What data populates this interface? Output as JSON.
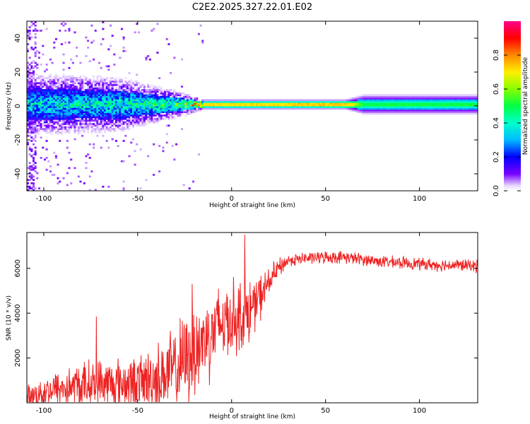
{
  "title": "C2E2.2025.327.22.01.E02",
  "chart_data": [
    {
      "type": "heatmap",
      "title": "C2E2.2025.327.22.01.E02",
      "xlabel": "Height of straight line (km)",
      "ylabel": "Frequency (Hz)",
      "xlim": [
        -109,
        131
      ],
      "ylim": [
        -50,
        50
      ],
      "x_ticks": [
        -100,
        -50,
        0,
        50,
        100
      ],
      "y_ticks": [
        -40,
        -20,
        0,
        20,
        40
      ],
      "x_tick_labels": [
        "-100",
        "-50",
        "0",
        "50",
        "100"
      ],
      "y_tick_labels": [
        "-40",
        "-20",
        "0",
        "20",
        "40"
      ],
      "colorbar": {
        "label": "Normalized spectral amplitude",
        "range": [
          0,
          1
        ],
        "ticks": [
          0.0,
          0.2,
          0.4,
          0.6,
          0.8
        ],
        "tick_labels": [
          "0.0",
          "0.2",
          "0.4",
          "0.6",
          "0.8"
        ],
        "colormap": "rainbow (violet-blue-cyan-green-yellow-orange-red-magenta)"
      },
      "ridge": {
        "center_frequency_hz": 1,
        "description_points": [
          {
            "height_km": -109,
            "half_width_hz": 9,
            "peak_amplitude": 0.35
          },
          {
            "height_km": -60,
            "half_width_hz": 8,
            "peak_amplitude": 0.4
          },
          {
            "height_km": -30,
            "half_width_hz": 4,
            "peak_amplitude": 0.5
          },
          {
            "height_km": -15,
            "half_width_hz": 1.5,
            "peak_amplitude": 0.85
          },
          {
            "height_km": 60,
            "half_width_hz": 1.5,
            "peak_amplitude": 0.9
          },
          {
            "height_km": 70,
            "half_width_hz": 3,
            "peak_amplitude": 0.55
          },
          {
            "height_km": 131,
            "half_width_hz": 3,
            "peak_amplitude": 0.55
          }
        ]
      }
    },
    {
      "type": "line",
      "xlabel": "Height of straight line (km)",
      "ylabel": "SNR (10 * v/v)",
      "xlim": [
        -109,
        131
      ],
      "ylim": [
        0,
        7600
      ],
      "x_ticks": [
        -100,
        -50,
        0,
        50,
        100
      ],
      "y_ticks": [
        2000,
        4000,
        6000
      ],
      "x_tick_labels": [
        "-100",
        "-50",
        "0",
        "50",
        "100"
      ],
      "y_tick_labels": [
        "2000",
        "4000",
        "6000"
      ],
      "series": [
        {
          "name": "SNR",
          "color": "#ee2222",
          "envelope_mean": {
            "x": [
              -109,
              -100,
              -90,
              -80,
              -70,
              -60,
              -50,
              -40,
              -30,
              -20,
              -15,
              -10,
              -5,
              0,
              5,
              10,
              15,
              20,
              25,
              30,
              40,
              50,
              60,
              70,
              80,
              90,
              100,
              110,
              120,
              131
            ],
            "y": [
              200,
              500,
              650,
              750,
              850,
              850,
              900,
              1100,
              1500,
              2300,
              2800,
              3200,
              3600,
              3800,
              3900,
              4100,
              4700,
              5400,
              6000,
              6350,
              6450,
              6500,
              6500,
              6400,
              6300,
              6250,
              6200,
              6150,
              6150,
              6100
            ]
          },
          "noise_amplitude": {
            "x": [
              -109,
              -80,
              -50,
              -20,
              0,
              10,
              20,
              30,
              131
            ],
            "y": [
              500,
              1000,
              1100,
              2000,
              1600,
              1300,
              600,
              250,
              250
            ]
          },
          "notable_peaks": [
            {
              "x": 7,
              "y": 7500
            },
            {
              "x": -21,
              "y": 5300
            },
            {
              "x": -72,
              "y": 3850
            }
          ]
        }
      ]
    }
  ],
  "colors": {
    "line": "#ee2222",
    "axes": "#000000",
    "background": "#ffffff"
  }
}
